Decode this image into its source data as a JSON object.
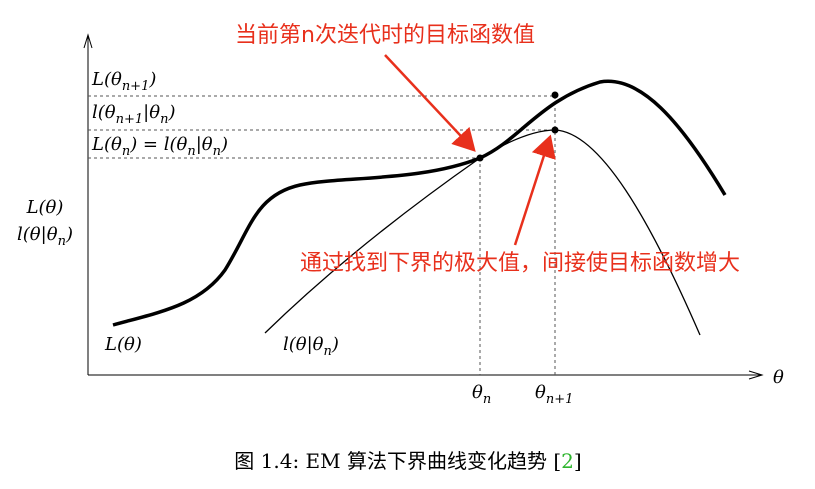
{
  "annotations": {
    "top": "当前第n次迭代时的目标函数值",
    "bottom": "通过找到下界的极大值，间接使目标函数增大"
  },
  "y_levels": [
    [
      "L(θ",
      "n+1",
      ")"
    ],
    [
      "l(θ",
      "n+1",
      "|θ",
      "n",
      ")"
    ],
    [
      "L(θ",
      "n",
      ") = l(θ",
      "n",
      "|θ",
      "n",
      ")"
    ]
  ],
  "y_axis_label": [
    [
      "L(θ)"
    ],
    [
      "l(θ|θ",
      "n",
      ")"
    ]
  ],
  "curve_labels": [
    [
      "L(θ)"
    ],
    [
      "l(θ|θ",
      "n",
      ")"
    ]
  ],
  "x_labels": [
    [
      "θ",
      "n"
    ],
    [
      "θ",
      "n+1"
    ]
  ],
  "x_axis_label": "θ",
  "caption": {
    "text": "图 1.4: EM 算法下界曲线变化趋势 [",
    "ref": "2",
    "end": "]"
  }
}
